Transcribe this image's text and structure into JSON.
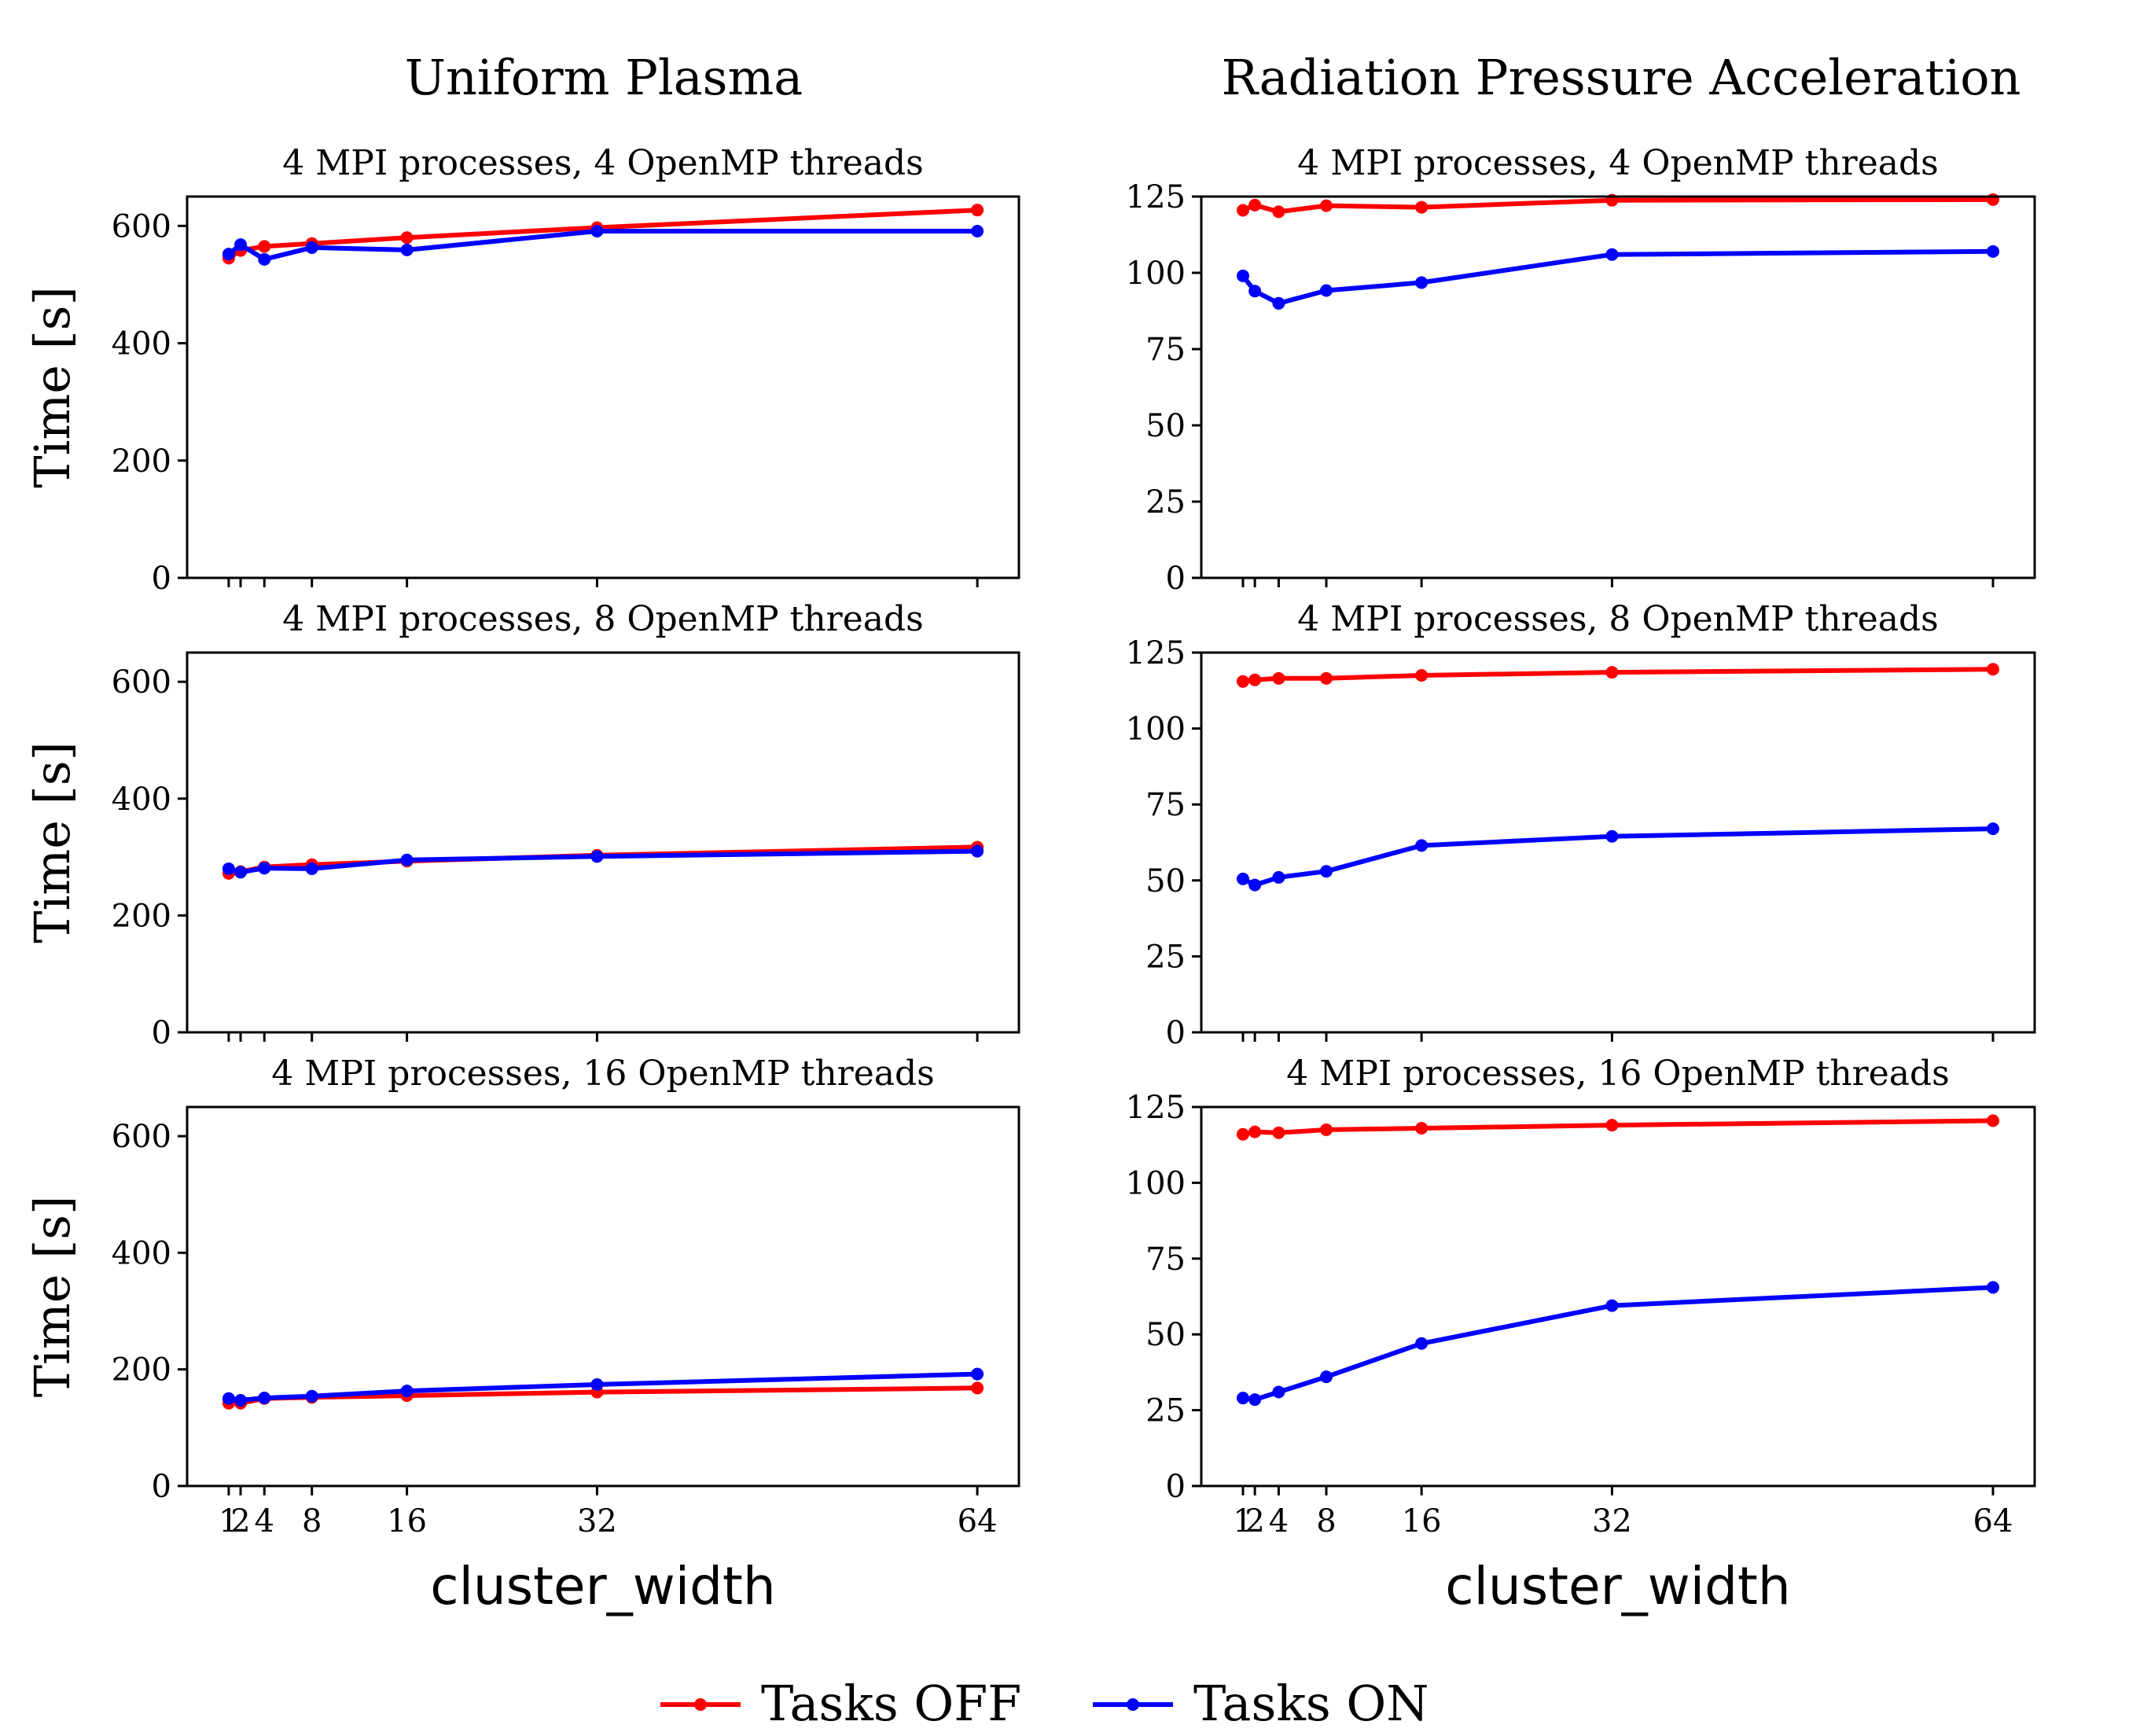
{
  "colors": {
    "tasks_off": "#ff0000",
    "tasks_on": "#0000ff"
  },
  "legend": [
    {
      "label": "Tasks OFF",
      "color": "#ff0000"
    },
    {
      "label": "Tasks ON",
      "color": "#0000ff"
    }
  ],
  "columns": [
    {
      "title": "Uniform Plasma"
    },
    {
      "title": "Radiation Pressure Acceleration"
    }
  ],
  "chart_data": [
    {
      "type": "line",
      "column": 0,
      "row": 0,
      "title": "4 MPI processes, 4 OpenMP threads",
      "xlabel": "",
      "ylabel": "Time [s]",
      "x": [
        1,
        2,
        4,
        8,
        16,
        32,
        64
      ],
      "xticks": [],
      "xtick_values": [
        1,
        2,
        4,
        8,
        16,
        32,
        64
      ],
      "ylim": [
        0,
        650
      ],
      "yticks": [
        0,
        200,
        400,
        600
      ],
      "series": [
        {
          "name": "Tasks OFF",
          "color": "#ff0000",
          "values": [
            545,
            558,
            565,
            570,
            580,
            597,
            627
          ]
        },
        {
          "name": "Tasks ON",
          "color": "#0000ff",
          "values": [
            552,
            568,
            543,
            563,
            559,
            591,
            591
          ]
        }
      ]
    },
    {
      "type": "line",
      "column": 0,
      "row": 1,
      "title": "4 MPI processes, 8 OpenMP threads",
      "xlabel": "",
      "ylabel": "Time [s]",
      "x": [
        1,
        2,
        4,
        8,
        16,
        32,
        64
      ],
      "xticks": [],
      "xtick_values": [
        1,
        2,
        4,
        8,
        16,
        32,
        64
      ],
      "ylim": [
        0,
        650
      ],
      "yticks": [
        0,
        200,
        400,
        600
      ],
      "series": [
        {
          "name": "Tasks OFF",
          "color": "#ff0000",
          "values": [
            272,
            275,
            283,
            287,
            293,
            303,
            317
          ]
        },
        {
          "name": "Tasks ON",
          "color": "#0000ff",
          "values": [
            280,
            274,
            281,
            280,
            295,
            301,
            310
          ]
        }
      ]
    },
    {
      "type": "line",
      "column": 0,
      "row": 2,
      "title": "4 MPI processes, 16 OpenMP threads",
      "xlabel": "cluster_width",
      "ylabel": "Time [s]",
      "x": [
        1,
        2,
        4,
        8,
        16,
        32,
        64
      ],
      "xticks": [
        "1",
        "2",
        "4",
        "8",
        "16",
        "32",
        "64"
      ],
      "xtick_values": [
        1,
        2,
        4,
        8,
        16,
        32,
        64
      ],
      "ylim": [
        0,
        650
      ],
      "yticks": [
        0,
        200,
        400,
        600
      ],
      "series": [
        {
          "name": "Tasks OFF",
          "color": "#ff0000",
          "values": [
            142,
            142,
            150,
            152,
            155,
            161,
            168
          ]
        },
        {
          "name": "Tasks ON",
          "color": "#0000ff",
          "values": [
            150,
            147,
            151,
            154,
            163,
            174,
            192
          ]
        }
      ]
    },
    {
      "type": "line",
      "column": 1,
      "row": 0,
      "title": "4 MPI processes, 4 OpenMP threads",
      "xlabel": "",
      "ylabel": "",
      "x": [
        1,
        2,
        4,
        8,
        16,
        32,
        64
      ],
      "xticks": [],
      "xtick_values": [
        1,
        2,
        4,
        8,
        16,
        32,
        64
      ],
      "ylim": [
        0,
        125
      ],
      "yticks": [
        0,
        25,
        50,
        75,
        100,
        125
      ],
      "series": [
        {
          "name": "Tasks OFF",
          "color": "#ff0000",
          "values": [
            120.5,
            122.2,
            120.0,
            122.0,
            121.5,
            123.8,
            124.0
          ]
        },
        {
          "name": "Tasks ON",
          "color": "#0000ff",
          "values": [
            99.0,
            94.0,
            90.0,
            94.2,
            96.8,
            106.0,
            107.0
          ]
        }
      ]
    },
    {
      "type": "line",
      "column": 1,
      "row": 1,
      "title": "4 MPI processes, 8 OpenMP threads",
      "xlabel": "",
      "ylabel": "",
      "x": [
        1,
        2,
        4,
        8,
        16,
        32,
        64
      ],
      "xticks": [],
      "xtick_values": [
        1,
        2,
        4,
        8,
        16,
        32,
        64
      ],
      "ylim": [
        0,
        125
      ],
      "yticks": [
        0,
        25,
        50,
        75,
        100,
        125
      ],
      "series": [
        {
          "name": "Tasks OFF",
          "color": "#ff0000",
          "values": [
            115.5,
            116.0,
            116.5,
            116.5,
            117.5,
            118.5,
            119.5
          ]
        },
        {
          "name": "Tasks ON",
          "color": "#0000ff",
          "values": [
            50.5,
            48.5,
            51.0,
            53.0,
            61.5,
            64.5,
            67.0
          ]
        }
      ]
    },
    {
      "type": "line",
      "column": 1,
      "row": 2,
      "title": "4 MPI processes, 16 OpenMP threads",
      "xlabel": "cluster_width",
      "ylabel": "",
      "x": [
        1,
        2,
        4,
        8,
        16,
        32,
        64
      ],
      "xticks": [
        "1",
        "2",
        "4",
        "8",
        "16",
        "32",
        "64"
      ],
      "xtick_values": [
        1,
        2,
        4,
        8,
        16,
        32,
        64
      ],
      "ylim": [
        0,
        125
      ],
      "yticks": [
        0,
        25,
        50,
        75,
        100,
        125
      ],
      "series": [
        {
          "name": "Tasks OFF",
          "color": "#ff0000",
          "values": [
            116.0,
            116.8,
            116.5,
            117.5,
            118.0,
            119.0,
            120.5
          ]
        },
        {
          "name": "Tasks ON",
          "color": "#0000ff",
          "values": [
            29.0,
            28.5,
            31.0,
            36.0,
            47.0,
            59.5,
            65.5
          ]
        }
      ]
    }
  ]
}
